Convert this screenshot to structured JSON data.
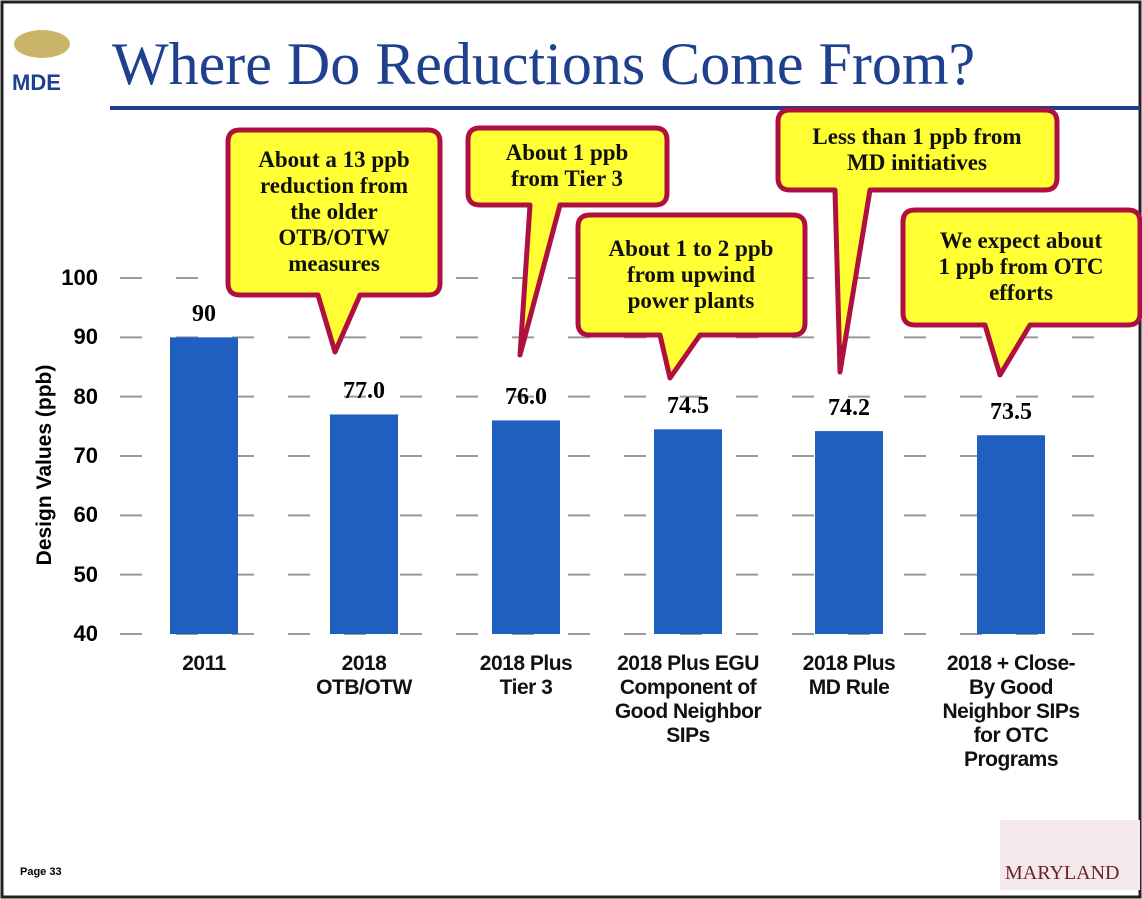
{
  "logo_left": "MDE",
  "page_label": "Page 33",
  "logo_right": "MARYLAND",
  "chart_data": {
    "type": "bar",
    "title": "Where Do Reductions Come From?",
    "y_label": "Design Values (ppb)",
    "categories": [
      "2011",
      "2018\nOTB/OTW",
      "2018 Plus\nTier 3",
      "2018 Plus EGU\nComponent of\nGood Neighbor\nSIPs",
      "2018 Plus\nMD Rule",
      "2018 + Close-\nBy Good\nNeighbor SIPs\nfor OTC\nPrograms"
    ],
    "values": [
      90,
      77,
      76,
      74.5,
      74.2,
      73.5
    ],
    "value_labels": [
      "90",
      "77.0",
      "76.0",
      "74.5",
      "74.2",
      "73.5"
    ],
    "color": "#1f5fbf",
    "ylim": [
      40,
      100
    ],
    "yticks": [
      40,
      50,
      60,
      70,
      80,
      90,
      100
    ],
    "grid": true,
    "annotations": [
      "About a 13 ppb\nreduction from\nthe older\nOTB/OTW\nmeasures",
      "About 1 ppb\nfrom Tier 3",
      "About 1 to 2 ppb\nfrom upwind\npower plants",
      "Less than 1 ppb from\nMD initiatives",
      "We expect about\n1 ppb from OTC\nefforts"
    ]
  }
}
